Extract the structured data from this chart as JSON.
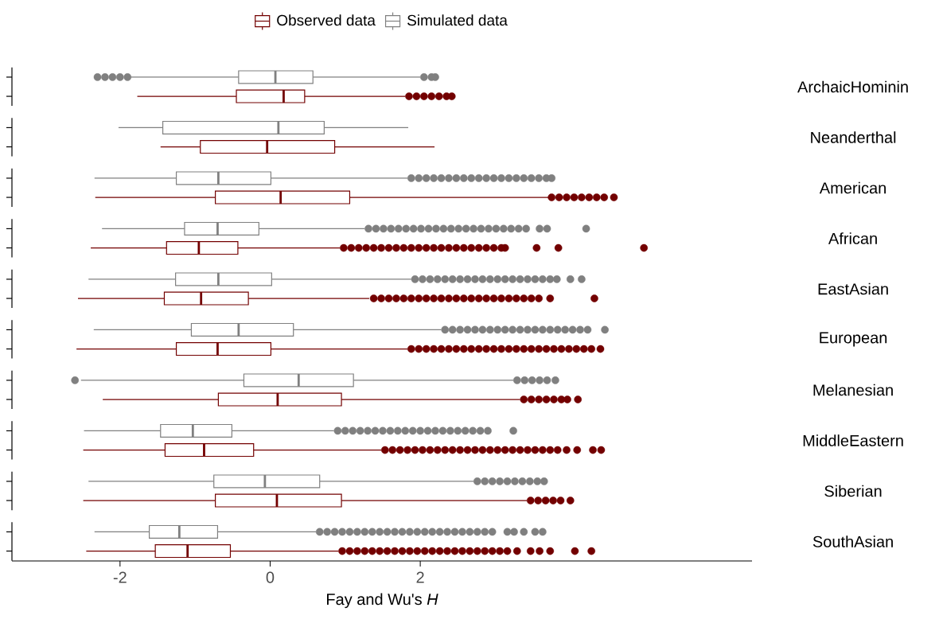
{
  "chart_data": {
    "type": "box",
    "orientation": "horizontal",
    "xlabel": "Fay and Wu's *H*",
    "categories": [
      "ArchaicHominin",
      "Neanderthal",
      "American",
      "African",
      "EastAsian",
      "European",
      "Melanesian",
      "MiddleEastern",
      "Siberian",
      "SouthAsian"
    ],
    "xlim": [
      -3.44,
      6.42
    ],
    "xticks": [
      -2,
      0,
      2
    ],
    "legend": "top",
    "series": [
      {
        "name": "Observed data",
        "color": "#730000",
        "boxes": [
          {
            "low": -1.77,
            "q1": -0.45,
            "median": 0.18,
            "q3": 0.46,
            "high": 1.8,
            "outliers": [
              1.85,
              1.95,
              2.05,
              2.15,
              2.25,
              2.35,
              2.42
            ]
          },
          {
            "low": -1.46,
            "q1": -0.93,
            "median": -0.04,
            "q3": 0.86,
            "high": 2.19
          },
          {
            "low": -2.33,
            "q1": -0.73,
            "median": 0.14,
            "q3": 1.06,
            "high": 3.71,
            "outliers": [
              3.75,
              3.85,
              3.95,
              4.05,
              4.15,
              4.25,
              4.35,
              4.45,
              4.58
            ]
          },
          {
            "low": -2.39,
            "q1": -1.38,
            "median": -0.95,
            "q3": -0.43,
            "high": 0.93,
            "outliers": [
              0.98,
              1.08,
              1.18,
              1.28,
              1.38,
              1.48,
              1.58,
              1.68,
              1.78,
              1.88,
              1.98,
              2.08,
              2.18,
              2.28,
              2.38,
              2.48,
              2.58,
              2.68,
              2.78,
              2.88,
              2.98,
              3.08,
              3.13,
              3.55,
              3.84,
              4.98
            ]
          },
          {
            "low": -2.56,
            "q1": -1.41,
            "median": -0.92,
            "q3": -0.29,
            "high": 1.32,
            "outliers": [
              1.38,
              1.48,
              1.58,
              1.68,
              1.78,
              1.88,
              1.98,
              2.08,
              2.18,
              2.28,
              2.38,
              2.48,
              2.58,
              2.68,
              2.78,
              2.88,
              2.98,
              3.08,
              3.18,
              3.28,
              3.38,
              3.48,
              3.58,
              3.73,
              4.32
            ]
          },
          {
            "low": -2.58,
            "q1": -1.25,
            "median": -0.7,
            "q3": 0.01,
            "high": 1.83,
            "outliers": [
              1.88,
              1.98,
              2.08,
              2.18,
              2.28,
              2.38,
              2.48,
              2.58,
              2.68,
              2.78,
              2.88,
              2.98,
              3.08,
              3.18,
              3.28,
              3.38,
              3.48,
              3.58,
              3.68,
              3.78,
              3.88,
              3.98,
              4.08,
              4.18,
              4.28,
              4.4
            ]
          },
          {
            "low": -2.23,
            "q1": -0.69,
            "median": 0.1,
            "q3": 0.95,
            "high": 3.33,
            "outliers": [
              3.38,
              3.48,
              3.58,
              3.68,
              3.78,
              3.88,
              3.96,
              4.1
            ]
          },
          {
            "low": -2.49,
            "q1": -1.4,
            "median": -0.88,
            "q3": -0.22,
            "high": 1.48,
            "outliers": [
              1.53,
              1.63,
              1.73,
              1.83,
              1.93,
              2.03,
              2.13,
              2.23,
              2.33,
              2.43,
              2.53,
              2.63,
              2.73,
              2.83,
              2.93,
              3.03,
              3.13,
              3.23,
              3.33,
              3.43,
              3.53,
              3.63,
              3.73,
              3.83,
              3.95,
              4.09,
              4.3,
              4.41
            ]
          },
          {
            "low": -2.49,
            "q1": -0.73,
            "median": 0.09,
            "q3": 0.95,
            "high": 3.42,
            "outliers": [
              3.47,
              3.57,
              3.67,
              3.77,
              3.87,
              4.0
            ]
          },
          {
            "low": -2.45,
            "q1": -1.53,
            "median": -1.1,
            "q3": -0.53,
            "high": 0.91,
            "outliers": [
              0.96,
              1.06,
              1.16,
              1.26,
              1.36,
              1.46,
              1.56,
              1.66,
              1.76,
              1.86,
              1.96,
              2.06,
              2.16,
              2.26,
              2.36,
              2.46,
              2.56,
              2.66,
              2.76,
              2.86,
              2.96,
              3.06,
              3.16,
              3.29,
              3.47,
              3.59,
              3.73,
              4.06,
              4.28
            ]
          }
        ]
      },
      {
        "name": "Simulated data",
        "color": "#808080",
        "boxes": [
          {
            "low": -1.86,
            "q1": -0.42,
            "median": 0.07,
            "q3": 0.57,
            "high": 2.0,
            "outliers": [
              -2.3,
              -2.2,
              -2.1,
              -2.0,
              -1.9,
              2.05,
              2.15,
              2.2
            ]
          },
          {
            "low": -2.02,
            "q1": -1.43,
            "median": 0.11,
            "q3": 0.72,
            "high": 1.84
          },
          {
            "low": -2.34,
            "q1": -1.25,
            "median": -0.69,
            "q3": 0.01,
            "high": 1.83,
            "outliers": [
              1.88,
              1.98,
              2.08,
              2.18,
              2.28,
              2.38,
              2.48,
              2.58,
              2.68,
              2.78,
              2.88,
              2.98,
              3.08,
              3.18,
              3.28,
              3.38,
              3.48,
              3.58,
              3.68,
              3.75
            ]
          },
          {
            "low": -2.24,
            "q1": -1.14,
            "median": -0.7,
            "q3": -0.15,
            "high": 1.26,
            "outliers": [
              1.31,
              1.41,
              1.51,
              1.61,
              1.71,
              1.81,
              1.91,
              2.01,
              2.11,
              2.21,
              2.31,
              2.41,
              2.51,
              2.61,
              2.71,
              2.81,
              2.91,
              3.01,
              3.11,
              3.21,
              3.31,
              3.41,
              3.59,
              3.69,
              4.21
            ]
          },
          {
            "low": -2.42,
            "q1": -1.26,
            "median": -0.69,
            "q3": 0.02,
            "high": 1.88,
            "outliers": [
              1.93,
              2.03,
              2.13,
              2.23,
              2.33,
              2.43,
              2.53,
              2.63,
              2.73,
              2.83,
              2.93,
              3.03,
              3.13,
              3.23,
              3.33,
              3.43,
              3.53,
              3.63,
              3.73,
              3.82,
              4.0,
              4.15
            ]
          },
          {
            "low": -2.35,
            "q1": -1.05,
            "median": -0.42,
            "q3": 0.31,
            "high": 2.28,
            "outliers": [
              2.33,
              2.43,
              2.53,
              2.63,
              2.73,
              2.83,
              2.93,
              3.03,
              3.13,
              3.23,
              3.33,
              3.43,
              3.53,
              3.63,
              3.73,
              3.83,
              3.93,
              4.03,
              4.13,
              4.23,
              4.46
            ]
          },
          {
            "low": -2.52,
            "q1": -0.35,
            "median": 0.38,
            "q3": 1.11,
            "high": 3.24,
            "outliers": [
              -2.6,
              3.29,
              3.39,
              3.49,
              3.59,
              3.69,
              3.8
            ]
          },
          {
            "low": -2.48,
            "q1": -1.46,
            "median": -1.03,
            "q3": -0.51,
            "high": 0.85,
            "outliers": [
              0.9,
              1.0,
              1.1,
              1.2,
              1.3,
              1.4,
              1.5,
              1.6,
              1.7,
              1.8,
              1.9,
              2.0,
              2.1,
              2.2,
              2.3,
              2.4,
              2.5,
              2.6,
              2.7,
              2.8,
              2.9,
              3.24
            ]
          },
          {
            "low": -2.42,
            "q1": -0.75,
            "median": -0.07,
            "q3": 0.66,
            "high": 2.71,
            "outliers": [
              2.76,
              2.86,
              2.96,
              3.06,
              3.16,
              3.26,
              3.36,
              3.46,
              3.56,
              3.65
            ]
          },
          {
            "low": -2.34,
            "q1": -1.61,
            "median": -1.21,
            "q3": -0.7,
            "high": 0.61,
            "outliers": [
              0.66,
              0.76,
              0.86,
              0.96,
              1.06,
              1.16,
              1.26,
              1.36,
              1.46,
              1.56,
              1.66,
              1.76,
              1.86,
              1.96,
              2.06,
              2.16,
              2.26,
              2.36,
              2.46,
              2.56,
              2.66,
              2.76,
              2.86,
              2.96,
              3.16,
              3.25,
              3.38,
              3.53,
              3.63
            ]
          }
        ]
      }
    ]
  }
}
